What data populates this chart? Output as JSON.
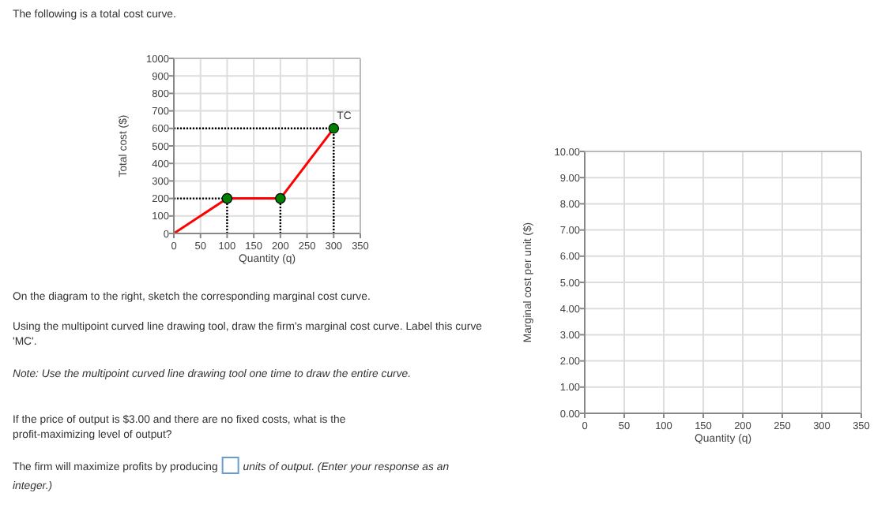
{
  "chart_data": [
    {
      "type": "line",
      "title": "The following is a total cost curve.",
      "xlabel": "Quantity (q)",
      "ylabel": "Total cost ($)",
      "xlim": [
        0,
        350
      ],
      "ylim": [
        0,
        1000
      ],
      "xticks": [
        0,
        50,
        100,
        150,
        200,
        250,
        300,
        350
      ],
      "yticks": [
        0,
        100,
        200,
        300,
        400,
        500,
        600,
        700,
        800,
        900,
        1000
      ],
      "grid": true,
      "series": [
        {
          "name": "TC",
          "type": "line",
          "color": "#ff0000",
          "x": [
            0,
            100,
            200,
            300
          ],
          "values": [
            0,
            200,
            200,
            600
          ]
        },
        {
          "type": "scatter",
          "color": "#008000",
          "x": [
            100,
            200,
            300
          ],
          "values": [
            200,
            200,
            600
          ],
          "marker": "circle"
        }
      ],
      "ref_lines": [
        {
          "axis": "y",
          "value": 200,
          "line_style": "dotted",
          "color": "#000000"
        },
        {
          "axis": "y",
          "value": 600,
          "line_style": "dotted",
          "color": "#000000"
        },
        {
          "axis": "x",
          "value": 100,
          "line_style": "dotted",
          "color": "#000000"
        },
        {
          "axis": "x",
          "value": 200,
          "line_style": "dotted",
          "color": "#000000"
        },
        {
          "axis": "x",
          "value": 300,
          "line_style": "dotted",
          "color": "#000000"
        }
      ],
      "annotations": [
        "On the diagram to the right, sketch the corresponding marginal cost curve.",
        "Using the multipoint curved line drawing tool, draw the firm's marginal cost curve. Label this curve 'MC'.",
        "Note: Use the multipoint curved line drawing tool one time to draw the entire curve.",
        "If the price of output is $3.00 and there are no fixed costs, what is the profit-maximizing level of output?",
        "The firm will maximize profits by producing",
        "units of output. (Enter your response as an integer.)"
      ]
    },
    {
      "type": "line",
      "xlabel": "Quantity (q)",
      "ylabel": "Marginal cost per unit ($)",
      "xlim": [
        0,
        350
      ],
      "ylim": [
        0,
        10
      ],
      "xticks": [
        0,
        50,
        100,
        150,
        200,
        250,
        300,
        350
      ],
      "yticks": [
        {
          "value": 0,
          "label": "0.00"
        },
        {
          "value": 1,
          "label": "1.00"
        },
        {
          "value": 2,
          "label": "2.00"
        },
        {
          "value": 3,
          "label": "3.00"
        },
        {
          "value": 4,
          "label": "4.00"
        },
        {
          "value": 5,
          "label": "5.00"
        },
        {
          "value": 6,
          "label": "6.00"
        },
        {
          "value": 7,
          "label": "7.00"
        },
        {
          "value": 8,
          "label": "8.00"
        },
        {
          "value": 9,
          "label": "9.00"
        },
        {
          "value": 10,
          "label": "10.00"
        }
      ],
      "grid": true
    }
  ]
}
